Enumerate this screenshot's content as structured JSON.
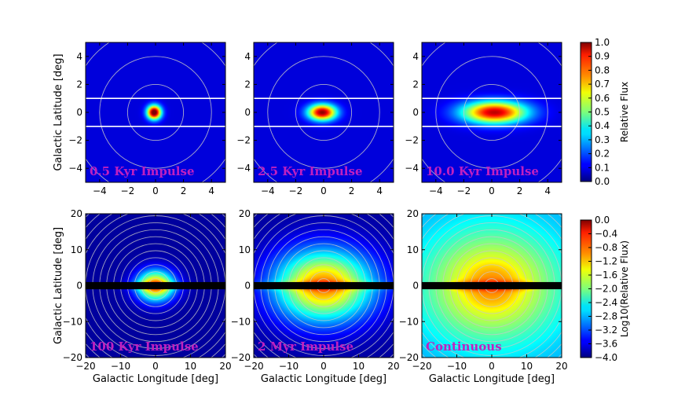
{
  "chart_data": [
    {
      "type": "heatmap",
      "panel": "top-left",
      "label": "0.5 Kyr Impulse",
      "xlim": [
        -5,
        5
      ],
      "ylim": [
        -5,
        5
      ],
      "xticks": [
        "−4",
        "−2",
        "0",
        "2",
        "4"
      ],
      "yticks": [
        "4",
        "2",
        "0",
        "−2",
        "−4"
      ],
      "ylabel": "Galactic Latitude [deg]",
      "xlabel": "",
      "colorscale": "linear",
      "band_lines_deg": [
        1,
        -1
      ],
      "circle_radii_deg": [
        2,
        4,
        6
      ],
      "blob": {
        "cx": -0.1,
        "cy": 0.0,
        "sx": 0.35,
        "sy": 0.35,
        "peak": 1.0
      }
    },
    {
      "type": "heatmap",
      "panel": "top-middle",
      "label": "2.5 Kyr Impulse",
      "xlim": [
        -5,
        5
      ],
      "ylim": [
        -5,
        5
      ],
      "xticks": [
        "−4",
        "−2",
        "0",
        "2",
        "4"
      ],
      "yticks": [
        "4",
        "2",
        "0",
        "−2",
        "−4"
      ],
      "band_lines_deg": [
        1,
        -1
      ],
      "circle_radii_deg": [
        2,
        4,
        6
      ],
      "blob": {
        "cx": -0.1,
        "cy": 0.0,
        "sx": 0.7,
        "sy": 0.4,
        "peak": 0.9
      }
    },
    {
      "type": "heatmap",
      "panel": "top-right",
      "label": "10.0 Kyr Impulse",
      "xlim": [
        -5,
        5
      ],
      "ylim": [
        -5,
        5
      ],
      "xticks": [
        "−4",
        "−2",
        "0",
        "2",
        "4"
      ],
      "yticks": [
        "4",
        "2",
        "0",
        "−2",
        "−4"
      ],
      "band_lines_deg": [
        1,
        -1
      ],
      "circle_radii_deg": [
        2,
        4,
        6
      ],
      "blob": {
        "cx": 0.2,
        "cy": 0.0,
        "sx": 1.6,
        "sy": 0.55,
        "peak": 0.85
      }
    },
    {
      "type": "heatmap",
      "panel": "bottom-left",
      "label": "100 Kyr Impulse",
      "xlim": [
        -20,
        20
      ],
      "ylim": [
        -20,
        20
      ],
      "xticks": [
        "−20",
        "−10",
        "0",
        "10",
        "20"
      ],
      "yticks": [
        "20",
        "10",
        "0",
        "−10",
        "−20"
      ],
      "ylabel": "Galactic Latitude [deg]",
      "xlabel": "Galactic Longitude [deg]",
      "colorscale": "log10",
      "masked_band_deg": 1,
      "circle_step_deg": 2,
      "blob": {
        "cx": 0,
        "cy": 0,
        "sx": 3.8,
        "sy": 3.0,
        "peak": 1.0
      }
    },
    {
      "type": "heatmap",
      "panel": "bottom-middle",
      "label": "2 Myr Impulse",
      "xlim": [
        -20,
        20
      ],
      "ylim": [
        -20,
        20
      ],
      "xticks": [
        "−20",
        "−10",
        "0",
        "10",
        "20"
      ],
      "yticks": [
        "20",
        "10",
        "0",
        "−10",
        "−20"
      ],
      "xlabel": "Galactic Longitude [deg]",
      "masked_band_deg": 1,
      "circle_step_deg": 2,
      "blob": {
        "cx": 0,
        "cy": 0,
        "sx": 10,
        "sy": 7,
        "peak": 1.0
      }
    },
    {
      "type": "heatmap",
      "panel": "bottom-right",
      "label": "Continuous",
      "xlim": [
        -20,
        20
      ],
      "ylim": [
        -20,
        20
      ],
      "xticks": [
        "−20",
        "−10",
        "0",
        "10",
        "20"
      ],
      "yticks": [
        "20",
        "10",
        "0",
        "−10",
        "−20"
      ],
      "xlabel": "Galactic Longitude [deg]",
      "masked_band_deg": 1,
      "circle_step_deg": 2,
      "blob": {
        "cx": 0,
        "cy": 0,
        "sx": 14,
        "sy": 11,
        "peak": 1.0
      }
    }
  ],
  "colorbars": [
    {
      "label": "Relative Flux",
      "ticks": [
        "1.0",
        "0.9",
        "0.8",
        "0.7",
        "0.6",
        "0.5",
        "0.4",
        "0.3",
        "0.2",
        "0.1",
        "0.0"
      ],
      "range": [
        0,
        1
      ],
      "colormap": "jet"
    },
    {
      "label": "Log10(Relative Flux)",
      "ticks": [
        "0.0",
        "−0.4",
        "−0.8",
        "−1.2",
        "−1.6",
        "−2.0",
        "−2.4",
        "−2.8",
        "−3.2",
        "−3.6",
        "−4.0"
      ],
      "range": [
        -4,
        0
      ],
      "colormap": "jet"
    }
  ]
}
